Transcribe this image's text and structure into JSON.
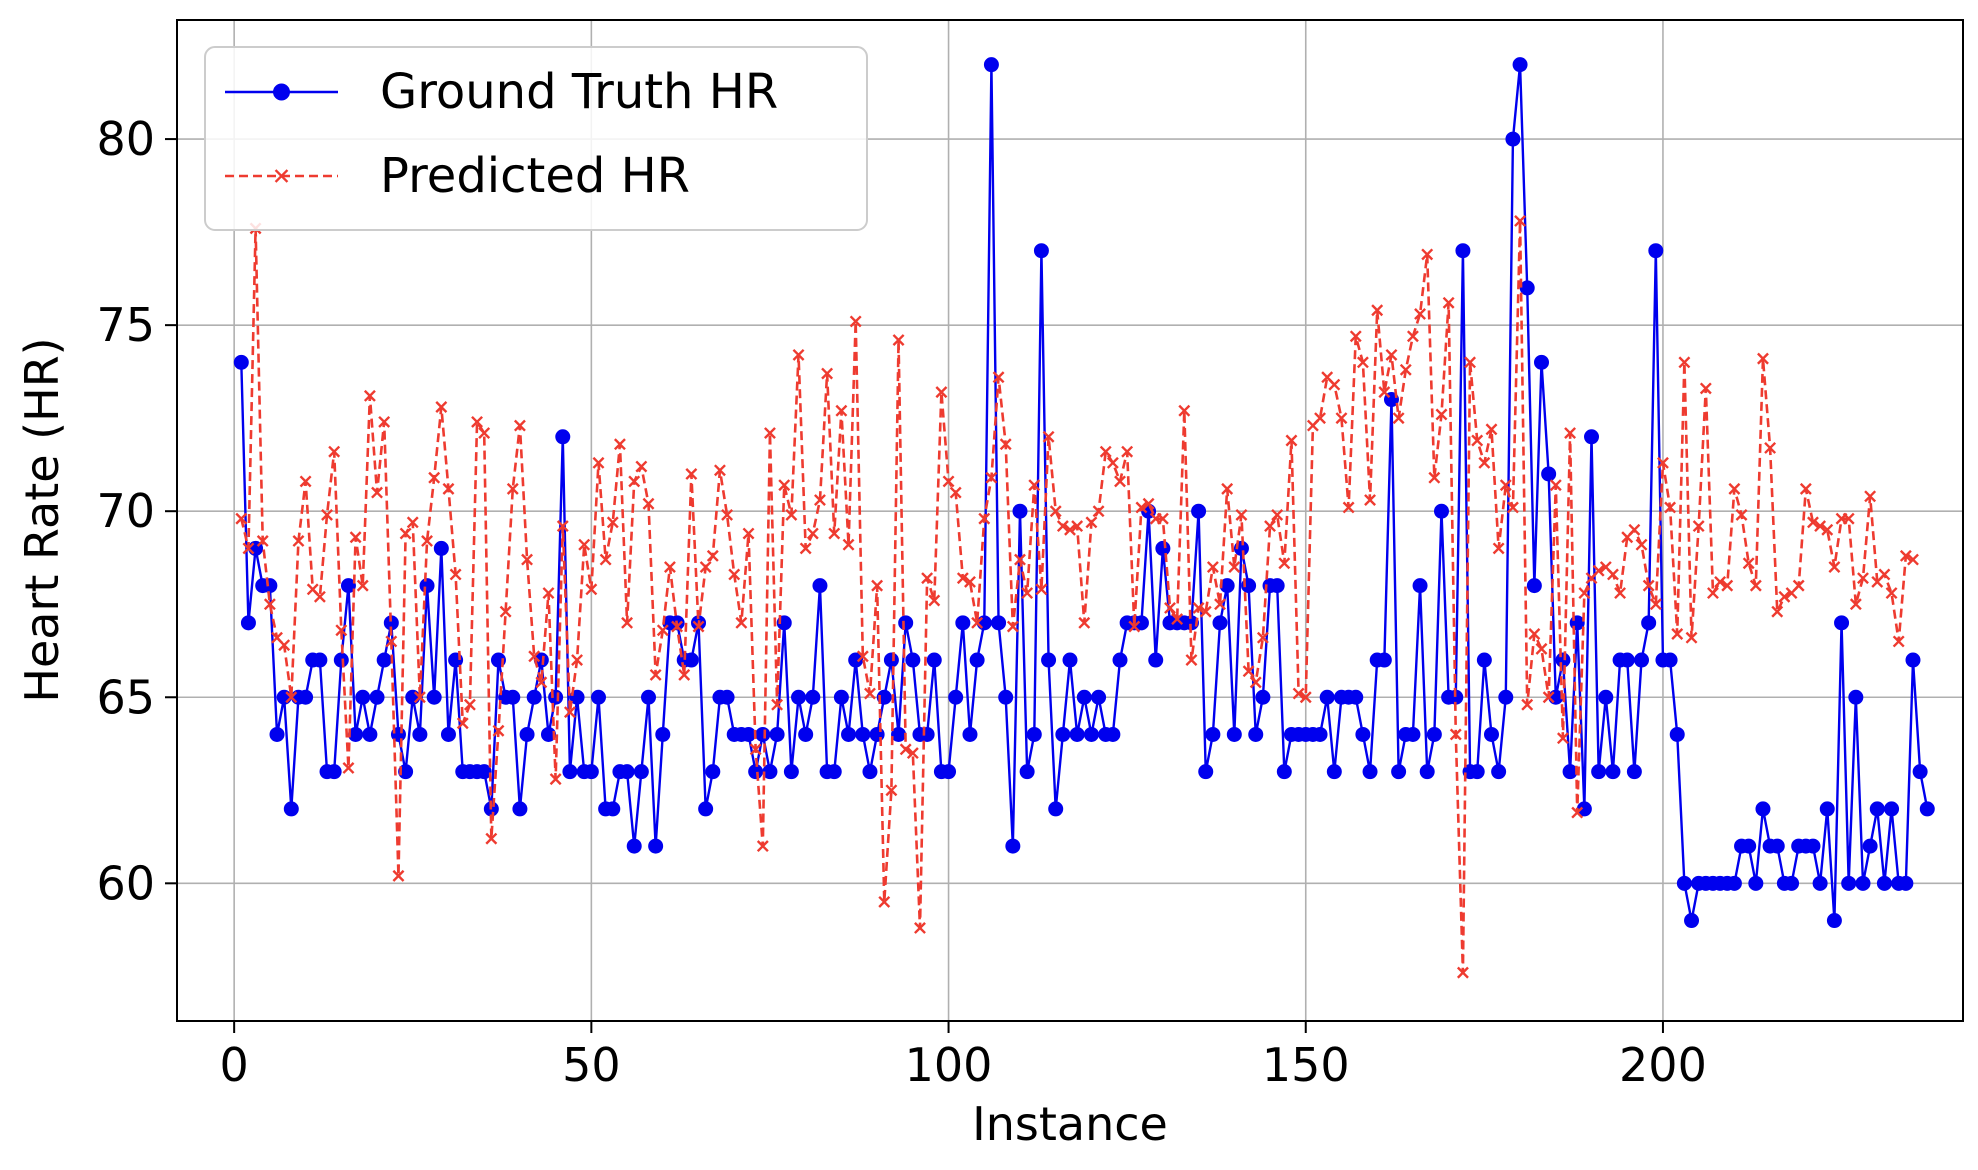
{
  "chart_data": {
    "type": "line",
    "title": "",
    "xlabel": "Instance",
    "ylabel": "Heart Rate (HR)",
    "xlim": [
      -8,
      242
    ],
    "ylim": [
      56.3,
      83.2
    ],
    "xticks": [
      0,
      50,
      100,
      150,
      200
    ],
    "yticks": [
      60,
      65,
      70,
      75,
      80
    ],
    "grid": true,
    "legend": "top-left",
    "series": [
      {
        "name": "Ground Truth HR",
        "color": "#0000ee",
        "style": "solid",
        "marker": "circle",
        "values": [
          74,
          67,
          69,
          68,
          68,
          64,
          65,
          62,
          65,
          65,
          66,
          66,
          63,
          63,
          66,
          68,
          64,
          65,
          64,
          65,
          66,
          67,
          64,
          63,
          65,
          64,
          68,
          65,
          69,
          64,
          66,
          63,
          63,
          63,
          63,
          62,
          66,
          65,
          65,
          62,
          64,
          65,
          66,
          64,
          65,
          72,
          63,
          65,
          63,
          63,
          65,
          62,
          62,
          63,
          63,
          61,
          63,
          65,
          61,
          64,
          67,
          67,
          66,
          66,
          67,
          62,
          63,
          65,
          65,
          64,
          64,
          64,
          63,
          64,
          63,
          64,
          67,
          63,
          65,
          64,
          65,
          68,
          63,
          63,
          65,
          64,
          66,
          64,
          63,
          64,
          65,
          66,
          64,
          67,
          66,
          64,
          64,
          66,
          63,
          63,
          65,
          67,
          64,
          66,
          67,
          82,
          67,
          65,
          61,
          70,
          63,
          64,
          77,
          66,
          62,
          64,
          66,
          64,
          65,
          64,
          65,
          64,
          64,
          66,
          67,
          67,
          67,
          70,
          66,
          69,
          67,
          67,
          67,
          67,
          70,
          63,
          64,
          67,
          68,
          64,
          69,
          68,
          64,
          65,
          68,
          68,
          63,
          64,
          64,
          64,
          64,
          64,
          65,
          63,
          65,
          65,
          65,
          64,
          63,
          66,
          66,
          73,
          63,
          64,
          64,
          68,
          63,
          64,
          70,
          65,
          65,
          77,
          63,
          63,
          66,
          64,
          63,
          65,
          80,
          82,
          76,
          68,
          74,
          71,
          65,
          66,
          63,
          67,
          62,
          72,
          63,
          65,
          63,
          66,
          66,
          63,
          66,
          67,
          77,
          66,
          66,
          64,
          60,
          59,
          60,
          60,
          60,
          60,
          60,
          60,
          61,
          61,
          60,
          62,
          61,
          61,
          60,
          60,
          61,
          61,
          61,
          60,
          62,
          59,
          67,
          60,
          65,
          60,
          61,
          62,
          60,
          62,
          60,
          60,
          66,
          63,
          62
        ]
      },
      {
        "name": "Predicted HR",
        "color": "#ee3b30",
        "style": "dashed",
        "marker": "x",
        "values": [
          69.8,
          69.0,
          77.6,
          69.2,
          67.5,
          66.6,
          66.4,
          65.0,
          69.2,
          70.8,
          67.9,
          67.7,
          69.9,
          71.6,
          66.8,
          63.1,
          69.3,
          68.0,
          73.1,
          70.5,
          72.4,
          66.5,
          60.2,
          69.4,
          69.7,
          65.0,
          69.2,
          70.9,
          72.8,
          70.6,
          68.3,
          64.3,
          64.8,
          72.4,
          72.1,
          61.2,
          64.1,
          67.3,
          70.6,
          72.3,
          68.7,
          66.1,
          65.4,
          67.8,
          62.8,
          69.6,
          64.6,
          66.0,
          69.1,
          67.9,
          71.3,
          68.7,
          69.7,
          71.8,
          67.0,
          70.8,
          71.2,
          70.2,
          65.6,
          66.8,
          68.5,
          66.9,
          65.6,
          71.0,
          66.9,
          68.5,
          68.8,
          71.1,
          69.9,
          68.3,
          67.0,
          69.4,
          63.6,
          61.0,
          72.1,
          64.8,
          70.7,
          69.9,
          74.2,
          69.0,
          69.4,
          70.3,
          73.7,
          69.4,
          72.7,
          69.1,
          75.1,
          66.1,
          65.1,
          68.0,
          59.5,
          62.5,
          74.6,
          63.6,
          63.5,
          58.8,
          68.2,
          67.6,
          73.2,
          70.8,
          70.5,
          68.2,
          68.1,
          67.0,
          69.8,
          70.9,
          73.6,
          71.8,
          66.9,
          68.7,
          67.8,
          70.7,
          67.9,
          72.0,
          70.0,
          69.6,
          69.5,
          69.6,
          67.0,
          69.7,
          70.0,
          71.6,
          71.3,
          70.8,
          71.6,
          66.9,
          70.1,
          70.2,
          69.8,
          69.8,
          67.4,
          67.1,
          72.7,
          66.0,
          67.4,
          67.3,
          68.5,
          67.5,
          70.6,
          68.5,
          69.9,
          65.7,
          65.4,
          66.6,
          69.6,
          69.9,
          68.6,
          71.9,
          65.1,
          65.0,
          72.3,
          72.5,
          73.6,
          73.4,
          72.5,
          70.1,
          74.7,
          74.0,
          70.3,
          75.4,
          73.2,
          74.2,
          72.5,
          73.8,
          74.7,
          75.3,
          76.9,
          70.9,
          72.6,
          75.6,
          64.0,
          57.6,
          74.0,
          71.9,
          71.3,
          72.2,
          69.0,
          70.7,
          70.1,
          77.8,
          64.8,
          66.7,
          66.3,
          65.0,
          70.7,
          63.9,
          72.1,
          61.9,
          67.8,
          68.2,
          68.4,
          68.5,
          68.3,
          67.8,
          69.3,
          69.5,
          69.1,
          68.0,
          67.5,
          71.3,
          70.1,
          66.7,
          74.0,
          66.6,
          69.6,
          73.3,
          67.8,
          68.1,
          68.0,
          70.6,
          69.9,
          68.6,
          68.0,
          74.1,
          71.7,
          67.3,
          67.7,
          67.8,
          68.0,
          70.6,
          69.7,
          69.6,
          69.5,
          68.5,
          69.8,
          69.8,
          67.5,
          68.2,
          70.4,
          68.1,
          68.3,
          67.8,
          66.5,
          68.8,
          68.7
        ]
      }
    ]
  }
}
